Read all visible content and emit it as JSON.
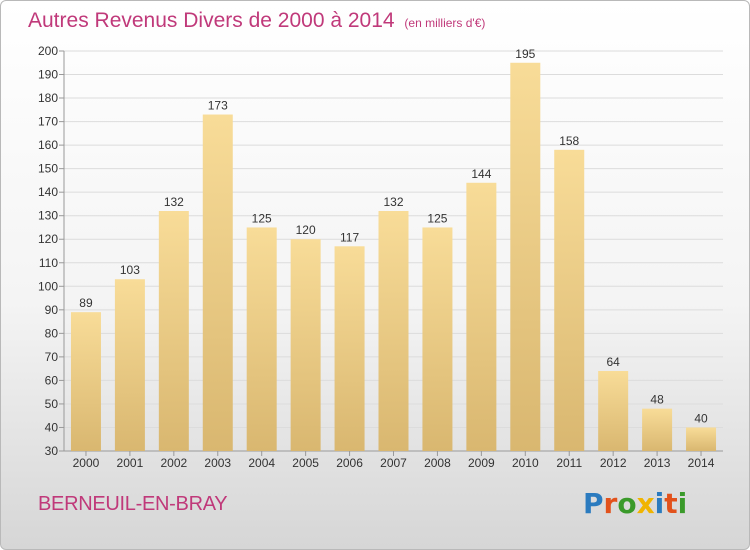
{
  "title": "Autres Revenus Divers de 2000 à 2014",
  "subtitle": "(en milliers d'€)",
  "place": "BERNEUIL-EN-BRAY",
  "brand": {
    "text": "Proxiti",
    "letters": [
      "P",
      "r",
      "o",
      "x",
      "i",
      "t",
      "i"
    ],
    "colors": [
      "#2b7bbf",
      "#e2521c",
      "#3a9a2a",
      "#f0b400",
      "#2b7bbf",
      "#e2521c",
      "#3a9a2a"
    ]
  },
  "colors": {
    "title": "#c0397a",
    "bar_light": "#f8dc98",
    "bar_dark": "#d9b770",
    "grid": "#dcdcdc",
    "axis_text": "#333333"
  },
  "chart_data": {
    "type": "bar",
    "categories": [
      "2000",
      "2001",
      "2002",
      "2003",
      "2004",
      "2005",
      "2006",
      "2007",
      "2008",
      "2009",
      "2010",
      "2011",
      "2012",
      "2013",
      "2014"
    ],
    "values": [
      89,
      103,
      132,
      173,
      125,
      120,
      117,
      132,
      125,
      144,
      195,
      158,
      64,
      48,
      40
    ],
    "ylim": [
      30,
      200
    ],
    "yticks": [
      30,
      40,
      50,
      60,
      70,
      80,
      90,
      100,
      110,
      120,
      130,
      140,
      150,
      160,
      170,
      180,
      190,
      200
    ],
    "grid": true,
    "legend": "none"
  }
}
